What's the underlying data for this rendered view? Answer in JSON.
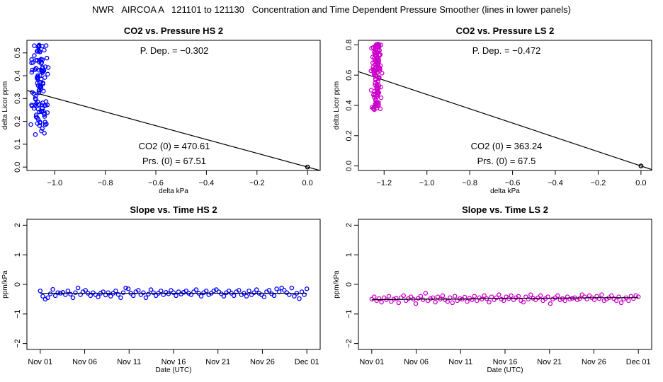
{
  "figure": {
    "title": "NWR   AIRCOA A   121101 to 121130   Concentration and Time Dependent Pressure Smoother (lines in lower panels)"
  },
  "colors": {
    "hs": "#0000ff",
    "ls": "#cc00cc",
    "axis": "#000000",
    "fit": "#000000"
  },
  "chart_data": [
    {
      "id": "co2-pressure-hs",
      "type": "scatter",
      "title": "CO2 vs. Pressure HS 2",
      "xlabel": "delta kPa",
      "ylabel": "delta Licor ppm",
      "xlim": [
        -1.11,
        0.05
      ],
      "ylim": [
        -0.015,
        0.555
      ],
      "xticks": [
        -1.0,
        -0.8,
        -0.6,
        -0.4,
        -0.2,
        0.0
      ],
      "xtick_labels": [
        "−1.0",
        "−0.8",
        "−0.6",
        "−0.4",
        "−0.2",
        "0.0"
      ],
      "yticks": [
        0.0,
        0.1,
        0.2,
        0.3,
        0.4,
        0.5
      ],
      "ytick_labels": [
        "0.0",
        "0.1",
        "0.2",
        "0.3",
        "0.4",
        "0.5"
      ],
      "annotations": {
        "pdep": "P. Dep. =  −0.302",
        "co2_0": "CO2 (0) =  470.61",
        "prs_0": "Prs. (0) =  67.51"
      },
      "fit_line": {
        "slope": -0.302,
        "intercept": 0.0
      },
      "origin_point": [
        0.0,
        0.0
      ],
      "cluster": {
        "x_center": -1.06,
        "x_spread": 0.022,
        "y_min": 0.13,
        "y_max": 0.54,
        "n": 115
      }
    },
    {
      "id": "co2-pressure-ls",
      "type": "scatter",
      "title": "CO2 vs. Pressure LS 2",
      "xlabel": "delta kPa",
      "ylabel": "delta Licor ppm",
      "xlim": [
        -1.32,
        0.05
      ],
      "ylim": [
        -0.03,
        0.83
      ],
      "xticks": [
        -1.2,
        -1.0,
        -0.8,
        -0.6,
        -0.4,
        -0.2,
        0.0
      ],
      "xtick_labels": [
        "−1.2",
        "−1.0",
        "−0.8",
        "−0.6",
        "−0.4",
        "−0.2",
        "0.0"
      ],
      "yticks": [
        0.0,
        0.2,
        0.4,
        0.6,
        0.8
      ],
      "ytick_labels": [
        "0.0",
        "0.2",
        "0.4",
        "0.6",
        "0.8"
      ],
      "annotations": {
        "pdep": "P. Dep. =  −0.472",
        "co2_0": "CO2 (0) =  363.24",
        "prs_0": "Prs. (0) =  67.5"
      },
      "fit_line": {
        "slope": -0.472,
        "intercept": 0.0
      },
      "origin_point": [
        0.0,
        0.0
      ],
      "cluster": {
        "x_center": -1.235,
        "x_spread": 0.015,
        "y_min": 0.37,
        "y_max": 0.81,
        "n": 130
      }
    },
    {
      "id": "slope-time-hs",
      "type": "scatter",
      "title": "Slope vs. Time HS 2",
      "xlabel": "Date (UTC)",
      "ylabel": "ppm/kPa",
      "xlim": [
        -1.5,
        31.5
      ],
      "ylim": [
        -2.2,
        2.2
      ],
      "xticks": [
        0,
        5,
        10,
        15,
        20,
        25,
        30
      ],
      "xtick_labels": [
        "Nov 01",
        "Nov 06",
        "Nov 11",
        "Nov 16",
        "Nov 21",
        "Nov 26",
        "Dec 01"
      ],
      "yticks": [
        -2,
        -1,
        0,
        1,
        2
      ],
      "ytick_labels": [
        "−2",
        "−1",
        "0",
        "1",
        "2"
      ],
      "smoother": [
        [
          0,
          -0.3
        ],
        [
          30,
          -0.3
        ]
      ],
      "slopes": [
        -0.22,
        -0.4,
        -0.5,
        -0.45,
        -0.32,
        -0.17,
        -0.38,
        -0.28,
        -0.3,
        -0.27,
        -0.35,
        -0.22,
        -0.33,
        -0.45,
        -0.28,
        -0.12,
        -0.35,
        -0.25,
        -0.2,
        -0.3,
        -0.38,
        -0.28,
        -0.35,
        -0.42,
        -0.3,
        -0.25,
        -0.36,
        -0.28,
        -0.4,
        -0.3,
        -0.22,
        -0.34,
        -0.45,
        -0.28,
        -0.12,
        -0.15,
        -0.3,
        -0.38,
        -0.25,
        -0.2,
        -0.35,
        -0.28,
        -0.45,
        -0.33,
        -0.18,
        -0.28,
        -0.38,
        -0.3,
        -0.22,
        -0.35,
        -0.27,
        -0.32,
        -0.2,
        -0.28,
        -0.38,
        -0.25,
        -0.33,
        -0.27,
        -0.22,
        -0.3,
        -0.35,
        -0.25,
        -0.18,
        -0.3,
        -0.4,
        -0.28,
        -0.22,
        -0.35,
        -0.3,
        -0.22,
        -0.18,
        -0.25,
        -0.32,
        -0.4,
        -0.28,
        -0.22,
        -0.3,
        -0.38,
        -0.25,
        -0.2,
        -0.35,
        -0.3,
        -0.4,
        -0.22,
        -0.35,
        -0.28,
        -0.18,
        -0.3,
        -0.35,
        -0.42,
        -0.25,
        -0.2,
        -0.32,
        -0.38,
        -0.15,
        -0.25,
        -0.12,
        -0.2,
        -0.28,
        -0.35,
        -0.12,
        -0.4,
        -0.3,
        -0.48,
        -0.25,
        -0.35,
        -0.15
      ]
    },
    {
      "id": "slope-time-ls",
      "type": "scatter",
      "title": "Slope vs. Time LS 2",
      "xlabel": "Date (UTC)",
      "ylabel": "ppm/kPa",
      "xlim": [
        -1.5,
        31.5
      ],
      "ylim": [
        -2.2,
        2.2
      ],
      "xticks": [
        0,
        5,
        10,
        15,
        20,
        25,
        30
      ],
      "xtick_labels": [
        "Nov 01",
        "Nov 06",
        "Nov 11",
        "Nov 16",
        "Nov 21",
        "Nov 26",
        "Dec 01"
      ],
      "yticks": [
        -2,
        -1,
        0,
        1,
        2
      ],
      "ytick_labels": [
        "−2",
        "−1",
        "0",
        "1",
        "2"
      ],
      "smoother": [
        [
          0,
          -0.52
        ],
        [
          5,
          -0.5
        ],
        [
          10,
          -0.5
        ],
        [
          15,
          -0.47
        ],
        [
          20,
          -0.47
        ],
        [
          25,
          -0.45
        ],
        [
          30,
          -0.45
        ]
      ],
      "slopes": [
        -0.5,
        -0.42,
        -0.55,
        -0.48,
        -0.6,
        -0.45,
        -0.52,
        -0.4,
        -0.58,
        -0.5,
        -0.47,
        -0.62,
        -0.45,
        -0.38,
        -0.55,
        -0.48,
        -0.42,
        -0.5,
        -0.65,
        -0.47,
        -0.4,
        -0.52,
        -0.3,
        -0.55,
        -0.48,
        -0.45,
        -0.6,
        -0.42,
        -0.5,
        -0.38,
        -0.52,
        -0.58,
        -0.45,
        -0.62,
        -0.4,
        -0.55,
        -0.48,
        -0.5,
        -0.43,
        -0.58,
        -0.47,
        -0.52,
        -0.4,
        -0.55,
        -0.45,
        -0.5,
        -0.38,
        -0.48,
        -0.6,
        -0.42,
        -0.52,
        -0.45,
        -0.35,
        -0.5,
        -0.55,
        -0.42,
        -0.48,
        -0.38,
        -0.52,
        -0.45,
        -0.4,
        -0.55,
        -0.6,
        -0.42,
        -0.5,
        -0.35,
        -0.47,
        -0.52,
        -0.45,
        -0.38,
        -0.55,
        -0.48,
        -0.42,
        -0.65,
        -0.5,
        -0.45,
        -0.38,
        -0.52,
        -0.48,
        -0.55,
        -0.42,
        -0.5,
        -0.47,
        -0.45,
        -0.52,
        -0.48,
        -0.35,
        -0.42,
        -0.5,
        -0.38,
        -0.45,
        -0.52,
        -0.4,
        -0.48,
        -0.35,
        -0.55,
        -0.5,
        -0.45,
        -0.38,
        -0.48,
        -0.55,
        -0.42,
        -0.62,
        -0.5,
        -0.45,
        -0.55,
        -0.4,
        -0.48,
        -0.38,
        -0.42
      ]
    }
  ]
}
